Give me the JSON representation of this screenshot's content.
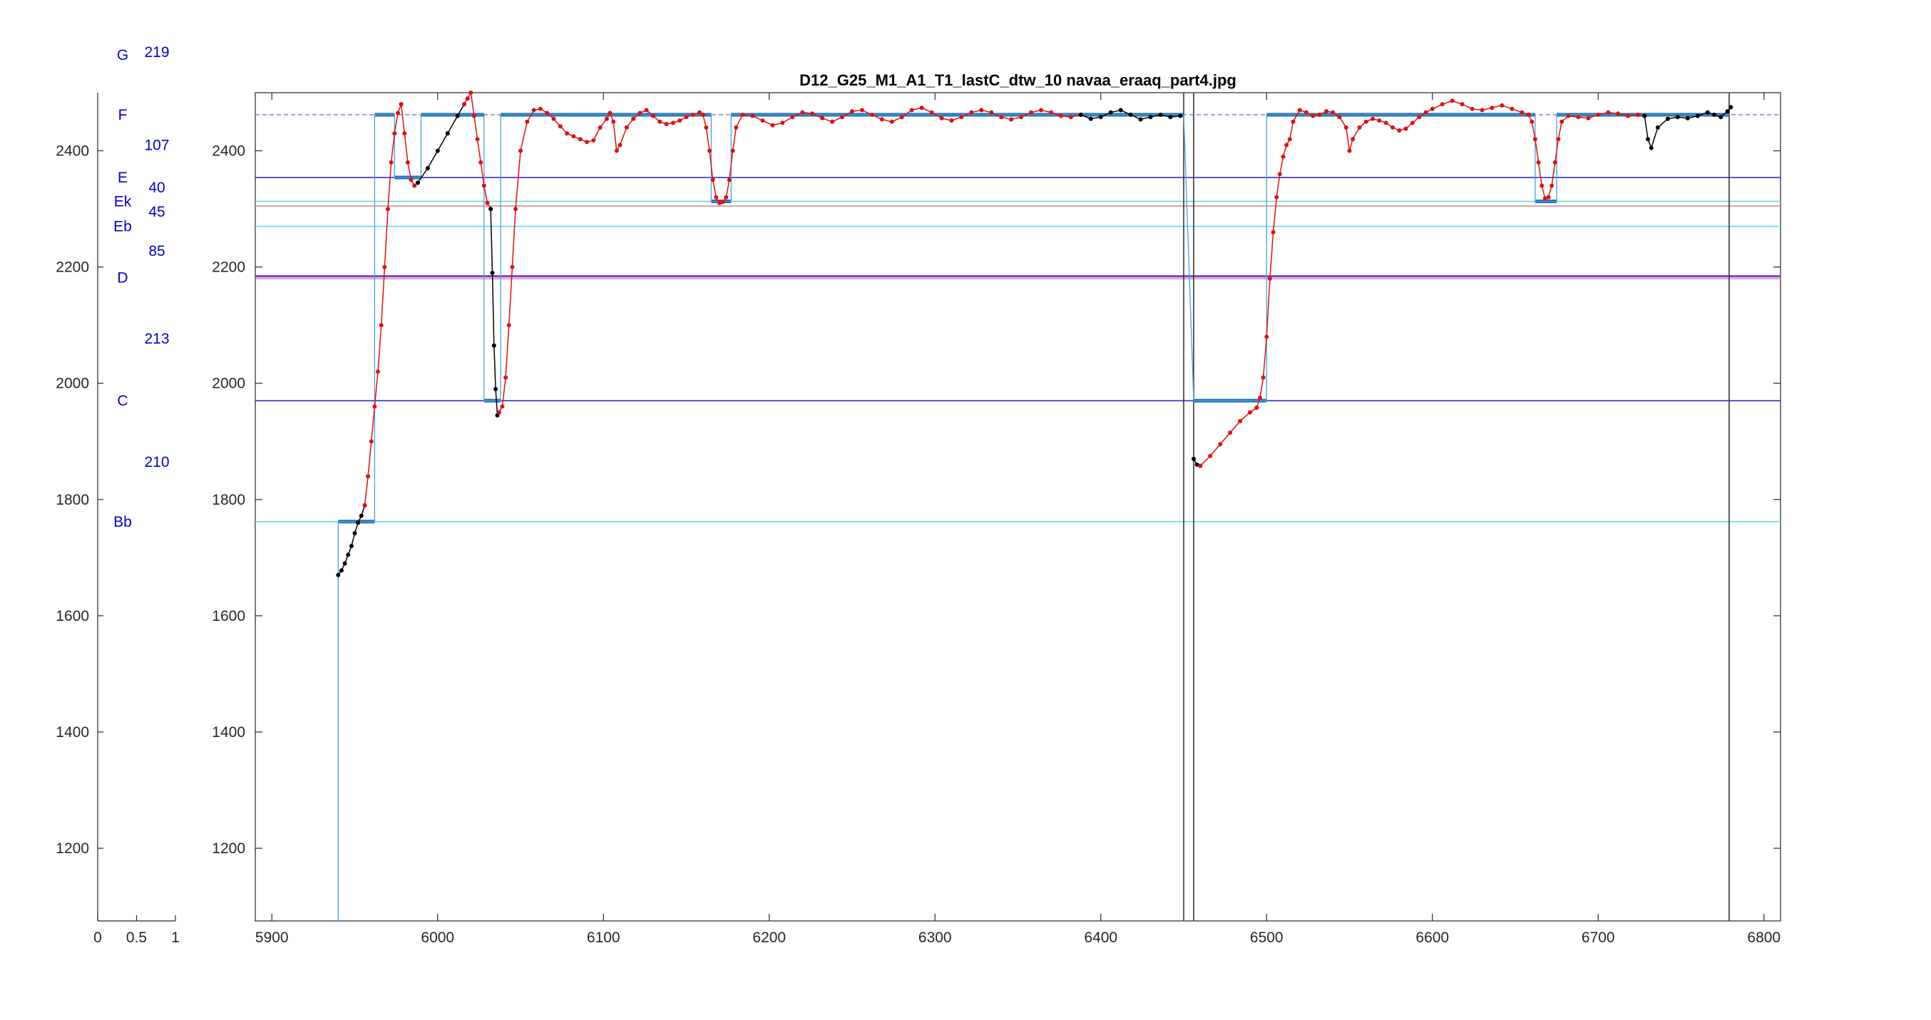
{
  "chart_data": {
    "type": "line",
    "title": "D12_G25_M1_A1_T1_lastC_dtw_10 navaa_eraaq_part4.jpg",
    "xlabel": "",
    "ylabel": "",
    "xlim": [
      5890,
      6810
    ],
    "ylim": [
      1075,
      2500
    ],
    "grid": false,
    "x_ticks": [
      5900,
      6000,
      6100,
      6200,
      6300,
      6400,
      6500,
      6600,
      6700,
      6800
    ],
    "y_ticks": [
      1200,
      1400,
      1600,
      1800,
      2000,
      2200,
      2400
    ],
    "side_panel": {
      "xlim": [
        0,
        1
      ],
      "x_ticks": [
        0,
        0.5,
        1
      ],
      "x_tick_labels": [
        "0",
        "0.5",
        "1"
      ],
      "y_ticks": [
        1200,
        1400,
        1600,
        1800,
        2000,
        2200,
        2400
      ],
      "note_labels": [
        {
          "text": "G",
          "y": 2565
        },
        {
          "text": "F",
          "y": 2462
        },
        {
          "text": "E",
          "y": 2354
        },
        {
          "text": "Ek",
          "y": 2313
        },
        {
          "text": "Eb",
          "y": 2270
        },
        {
          "text": "D",
          "y": 2182
        },
        {
          "text": "C",
          "y": 1970
        },
        {
          "text": "Bb",
          "y": 1762
        }
      ],
      "interval_labels": [
        {
          "text": "219",
          "y": 2570
        },
        {
          "text": "107",
          "y": 2410
        },
        {
          "text": "40",
          "y": 2337
        },
        {
          "text": "45",
          "y": 2295
        },
        {
          "text": "85",
          "y": 2228
        },
        {
          "text": "213",
          "y": 2077
        },
        {
          "text": "210",
          "y": 1865
        }
      ]
    },
    "reference_lines": [
      {
        "y": 2462,
        "color": "#8b8bd8",
        "dashed": true
      },
      {
        "y": 2354,
        "color": "#3333cc"
      },
      {
        "y": 2313,
        "color": "#66dddd"
      },
      {
        "y": 2305,
        "color": "#cc8888"
      },
      {
        "y": 2270,
        "color": "#66dddd"
      },
      {
        "y": 2184,
        "color": "#7a3fc8",
        "thick": true
      },
      {
        "y": 2180,
        "color": "#cc88cc"
      },
      {
        "y": 1970,
        "color": "#3333cc"
      },
      {
        "y": 1762,
        "color": "#66dddd"
      }
    ],
    "vertical_lines": [
      {
        "x": 6450,
        "color": "#333333"
      },
      {
        "x": 6456,
        "color": "#333333"
      },
      {
        "x": 6779,
        "color": "#333333"
      }
    ],
    "segments": [
      {
        "x0": 5940,
        "x1": 5962,
        "y": 1762
      },
      {
        "x0": 5962,
        "x1": 5974,
        "y": 2462
      },
      {
        "x0": 5974,
        "x1": 5990,
        "y": 2354
      },
      {
        "x0": 5990,
        "x1": 6007,
        "y": 2462
      },
      {
        "x0": 6007,
        "x1": 6028,
        "y": 2462
      },
      {
        "x0": 6028,
        "x1": 6038,
        "y": 1970
      },
      {
        "x0": 6038,
        "x1": 6165,
        "y": 2462
      },
      {
        "x0": 6165,
        "x1": 6177,
        "y": 2313
      },
      {
        "x0": 6177,
        "x1": 6450,
        "y": 2462
      },
      {
        "x0": 6456,
        "x1": 6500,
        "y": 1970
      },
      {
        "x0": 6500,
        "x1": 6662,
        "y": 2462
      },
      {
        "x0": 6662,
        "x1": 6675,
        "y": 2313
      },
      {
        "x0": 6675,
        "x1": 6779,
        "y": 2462
      }
    ],
    "series": [
      {
        "segment": "black",
        "color": "#000000",
        "points": [
          [
            5940,
            1670
          ],
          [
            5942,
            1678
          ],
          [
            5944,
            1690
          ],
          [
            5946,
            1705
          ],
          [
            5948,
            1720
          ],
          [
            5950,
            1742
          ],
          [
            5952,
            1760
          ],
          [
            5954,
            1772
          ],
          [
            5956,
            1790
          ]
        ]
      },
      {
        "segment": "red",
        "color": "#e01010",
        "points": [
          [
            5956,
            1790
          ],
          [
            5958,
            1840
          ],
          [
            5960,
            1900
          ],
          [
            5962,
            1960
          ],
          [
            5964,
            2020
          ],
          [
            5966,
            2100
          ],
          [
            5968,
            2200
          ],
          [
            5970,
            2300
          ],
          [
            5972,
            2380
          ],
          [
            5974,
            2430
          ],
          [
            5976,
            2465
          ],
          [
            5978,
            2480
          ]
        ]
      },
      {
        "segment": "red",
        "color": "#e01010",
        "points": [
          [
            5978,
            2480
          ],
          [
            5980,
            2430
          ],
          [
            5982,
            2380
          ],
          [
            5984,
            2350
          ],
          [
            5986,
            2340
          ],
          [
            5988,
            2345
          ]
        ]
      },
      {
        "segment": "black",
        "color": "#000000",
        "points": [
          [
            5988,
            2345
          ],
          [
            5994,
            2370
          ],
          [
            6000,
            2400
          ],
          [
            6006,
            2430
          ],
          [
            6012,
            2460
          ],
          [
            6016,
            2480
          ]
        ]
      },
      {
        "segment": "red",
        "color": "#e01010",
        "points": [
          [
            6016,
            2480
          ],
          [
            6018,
            2490
          ],
          [
            6020,
            2500
          ],
          [
            6022,
            2460
          ],
          [
            6024,
            2420
          ],
          [
            6026,
            2380
          ],
          [
            6028,
            2340
          ],
          [
            6030,
            2310
          ],
          [
            6032,
            2300
          ]
        ]
      },
      {
        "segment": "black",
        "color": "#000000",
        "points": [
          [
            6032,
            2300
          ],
          [
            6033,
            2190
          ],
          [
            6034,
            2065
          ],
          [
            6035,
            1990
          ],
          [
            6036,
            1945
          ],
          [
            6037,
            1950
          ]
        ]
      },
      {
        "segment": "red",
        "color": "#e01010",
        "points": [
          [
            6037,
            1950
          ],
          [
            6039,
            1960
          ],
          [
            6041,
            2010
          ],
          [
            6043,
            2100
          ],
          [
            6045,
            2200
          ],
          [
            6047,
            2300
          ],
          [
            6050,
            2400
          ],
          [
            6054,
            2450
          ],
          [
            6058,
            2470
          ],
          [
            6062,
            2472
          ],
          [
            6066,
            2465
          ],
          [
            6070,
            2455
          ],
          [
            6074,
            2442
          ],
          [
            6078,
            2430
          ],
          [
            6082,
            2425
          ],
          [
            6086,
            2420
          ],
          [
            6090,
            2415
          ],
          [
            6094,
            2418
          ],
          [
            6098,
            2440
          ],
          [
            6102,
            2455
          ],
          [
            6104,
            2465
          ],
          [
            6106,
            2450
          ],
          [
            6108,
            2400
          ],
          [
            6110,
            2410
          ],
          [
            6114,
            2440
          ],
          [
            6118,
            2455
          ],
          [
            6122,
            2465
          ],
          [
            6126,
            2470
          ],
          [
            6130,
            2460
          ],
          [
            6134,
            2450
          ],
          [
            6138,
            2446
          ],
          [
            6142,
            2448
          ],
          [
            6146,
            2452
          ],
          [
            6150,
            2458
          ],
          [
            6154,
            2462
          ],
          [
            6158,
            2466
          ],
          [
            6160,
            2462
          ],
          [
            6162,
            2440
          ],
          [
            6164,
            2400
          ],
          [
            6166,
            2350
          ],
          [
            6168,
            2320
          ],
          [
            6170,
            2310
          ],
          [
            6172,
            2312
          ],
          [
            6174,
            2320
          ],
          [
            6176,
            2350
          ],
          [
            6178,
            2400
          ],
          [
            6180,
            2440
          ],
          [
            6184,
            2462
          ],
          [
            6190,
            2460
          ],
          [
            6196,
            2452
          ],
          [
            6202,
            2444
          ],
          [
            6208,
            2448
          ],
          [
            6214,
            2458
          ],
          [
            6220,
            2466
          ],
          [
            6226,
            2464
          ],
          [
            6232,
            2456
          ],
          [
            6238,
            2450
          ],
          [
            6244,
            2458
          ],
          [
            6250,
            2468
          ],
          [
            6256,
            2470
          ],
          [
            6262,
            2462
          ],
          [
            6268,
            2454
          ],
          [
            6274,
            2450
          ],
          [
            6280,
            2458
          ],
          [
            6286,
            2470
          ],
          [
            6292,
            2474
          ],
          [
            6298,
            2466
          ],
          [
            6304,
            2456
          ],
          [
            6310,
            2452
          ],
          [
            6316,
            2458
          ],
          [
            6322,
            2466
          ],
          [
            6328,
            2470
          ],
          [
            6334,
            2466
          ],
          [
            6340,
            2458
          ],
          [
            6346,
            2454
          ],
          [
            6352,
            2458
          ],
          [
            6358,
            2466
          ],
          [
            6364,
            2470
          ],
          [
            6370,
            2466
          ],
          [
            6376,
            2460
          ],
          [
            6382,
            2458
          ],
          [
            6388,
            2462
          ]
        ]
      },
      {
        "segment": "black",
        "color": "#000000",
        "points": [
          [
            6388,
            2462
          ],
          [
            6394,
            2455
          ],
          [
            6400,
            2458
          ],
          [
            6406,
            2466
          ],
          [
            6412,
            2470
          ],
          [
            6418,
            2462
          ],
          [
            6424,
            2454
          ],
          [
            6430,
            2458
          ],
          [
            6436,
            2462
          ],
          [
            6442,
            2458
          ],
          [
            6448,
            2460
          ]
        ]
      },
      {
        "segment": "black",
        "color": "#000000",
        "points": [
          [
            6456,
            1870
          ],
          [
            6458,
            1860
          ],
          [
            6460,
            1858
          ]
        ]
      },
      {
        "segment": "red",
        "color": "#e01010",
        "points": [
          [
            6460,
            1858
          ],
          [
            6466,
            1875
          ],
          [
            6472,
            1895
          ],
          [
            6478,
            1915
          ],
          [
            6484,
            1935
          ],
          [
            6490,
            1950
          ],
          [
            6494,
            1958
          ]
        ]
      },
      {
        "segment": "red",
        "color": "#e01010",
        "points": [
          [
            6494,
            1958
          ],
          [
            6496,
            1975
          ],
          [
            6498,
            2010
          ],
          [
            6500,
            2080
          ],
          [
            6502,
            2180
          ],
          [
            6504,
            2260
          ],
          [
            6506,
            2320
          ],
          [
            6508,
            2360
          ],
          [
            6510,
            2390
          ],
          [
            6512,
            2410
          ],
          [
            6514,
            2420
          ],
          [
            6516,
            2450
          ],
          [
            6520,
            2470
          ],
          [
            6524,
            2466
          ],
          [
            6528,
            2460
          ],
          [
            6532,
            2462
          ],
          [
            6536,
            2468
          ],
          [
            6540,
            2466
          ],
          [
            6544,
            2458
          ],
          [
            6548,
            2440
          ],
          [
            6550,
            2400
          ],
          [
            6552,
            2420
          ],
          [
            6556,
            2440
          ],
          [
            6560,
            2450
          ],
          [
            6564,
            2455
          ],
          [
            6568,
            2452
          ],
          [
            6572,
            2448
          ],
          [
            6576,
            2440
          ],
          [
            6580,
            2435
          ],
          [
            6584,
            2438
          ],
          [
            6588,
            2448
          ],
          [
            6592,
            2458
          ],
          [
            6596,
            2466
          ],
          [
            6600,
            2472
          ],
          [
            6606,
            2480
          ],
          [
            6612,
            2486
          ],
          [
            6618,
            2480
          ],
          [
            6624,
            2472
          ],
          [
            6630,
            2470
          ],
          [
            6636,
            2474
          ],
          [
            6642,
            2478
          ],
          [
            6648,
            2472
          ],
          [
            6654,
            2466
          ],
          [
            6658,
            2462
          ],
          [
            6660,
            2450
          ],
          [
            6662,
            2420
          ],
          [
            6664,
            2380
          ],
          [
            6666,
            2340
          ],
          [
            6668,
            2318
          ],
          [
            6670,
            2320
          ],
          [
            6672,
            2340
          ],
          [
            6674,
            2380
          ],
          [
            6676,
            2420
          ],
          [
            6678,
            2450
          ],
          [
            6682,
            2460
          ],
          [
            6688,
            2458
          ],
          [
            6694,
            2456
          ],
          [
            6700,
            2462
          ],
          [
            6706,
            2466
          ],
          [
            6712,
            2464
          ],
          [
            6718,
            2460
          ],
          [
            6724,
            2462
          ],
          [
            6728,
            2460
          ]
        ]
      },
      {
        "segment": "black",
        "color": "#000000",
        "points": [
          [
            6728,
            2460
          ],
          [
            6730,
            2420
          ],
          [
            6732,
            2405
          ],
          [
            6736,
            2440
          ],
          [
            6742,
            2455
          ],
          [
            6748,
            2458
          ],
          [
            6754,
            2456
          ],
          [
            6760,
            2460
          ],
          [
            6766,
            2466
          ],
          [
            6770,
            2462
          ],
          [
            6774,
            2458
          ],
          [
            6778,
            2468
          ],
          [
            6780,
            2475
          ]
        ]
      }
    ]
  }
}
